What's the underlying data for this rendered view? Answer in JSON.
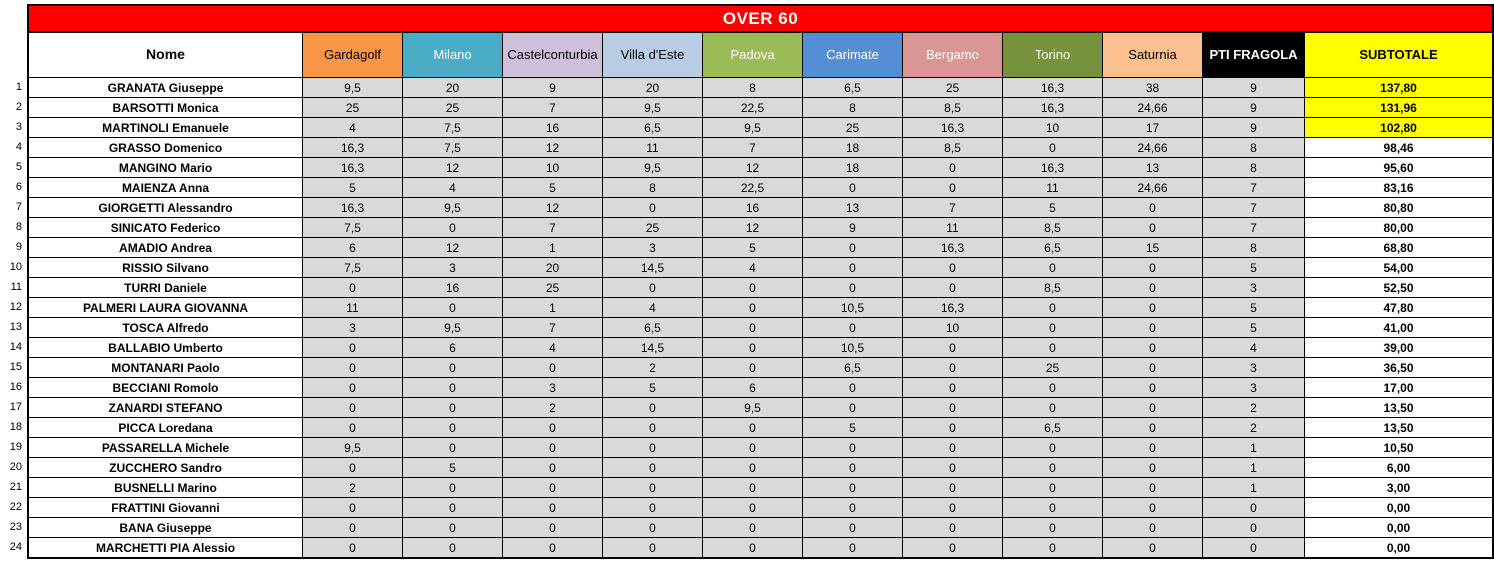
{
  "title": "OVER 60",
  "colors": {
    "title_bg": "#FF0000",
    "title_fg": "#FFFFFF",
    "cell_bg": "#D9D9D9",
    "highlight_bg": "#FFFF00",
    "border": "#000000"
  },
  "name_column": {
    "label": "Nome",
    "bg": "#FFFFFF",
    "fg": "#000000"
  },
  "columns": [
    {
      "label": "Gardagolf",
      "bg": "#F79646",
      "fg": "#000000",
      "bold": false
    },
    {
      "label": "Milano",
      "bg": "#4BACC6",
      "fg": "#FFFFFF",
      "bold": false
    },
    {
      "label": "Castelconturbia",
      "bg": "#CCC0DA",
      "fg": "#000000",
      "bold": false
    },
    {
      "label": "Villa d'Este",
      "bg": "#B8CCE4",
      "fg": "#000000",
      "bold": false
    },
    {
      "label": "Padova",
      "bg": "#9BBB59",
      "fg": "#FFFFFF",
      "bold": false
    },
    {
      "label": "Carimate",
      "bg": "#558ED5",
      "fg": "#FFFFFF",
      "bold": false
    },
    {
      "label": "Bergamo",
      "bg": "#D99694",
      "fg": "#FFFFFF",
      "bold": false
    },
    {
      "label": "Torino",
      "bg": "#76923C",
      "fg": "#FFFFFF",
      "bold": false
    },
    {
      "label": "Saturnia",
      "bg": "#FAC08F",
      "fg": "#000000",
      "bold": false
    },
    {
      "label": "PTI FRAGOLA",
      "bg": "#000000",
      "fg": "#FFFFFF",
      "bold": true
    },
    {
      "label": "SUBTOTALE",
      "bg": "#FFFF00",
      "fg": "#000000",
      "bold": true
    }
  ],
  "rows": [
    {
      "num": "1",
      "name": "GRANATA Giuseppe",
      "scores": [
        "9,5",
        "20",
        "9",
        "20",
        "8",
        "6,5",
        "25",
        "16,3",
        "38"
      ],
      "pti": "9",
      "subtotal": "137,80",
      "highlight": true
    },
    {
      "num": "2",
      "name": "BARSOTTI Monica",
      "scores": [
        "25",
        "25",
        "7",
        "9,5",
        "22,5",
        "8",
        "8,5",
        "16,3",
        "24,66"
      ],
      "pti": "9",
      "subtotal": "131,96",
      "highlight": true
    },
    {
      "num": "3",
      "name": "MARTINOLI Emanuele",
      "scores": [
        "4",
        "7,5",
        "16",
        "6,5",
        "9,5",
        "25",
        "16,3",
        "10",
        "17"
      ],
      "pti": "9",
      "subtotal": "102,80",
      "highlight": true
    },
    {
      "num": "4",
      "name": "GRASSO Domenico",
      "scores": [
        "16,3",
        "7,5",
        "12",
        "11",
        "7",
        "18",
        "8,5",
        "0",
        "24,66"
      ],
      "pti": "8",
      "subtotal": "98,46",
      "highlight": false
    },
    {
      "num": "5",
      "name": "MANGINO Mario",
      "scores": [
        "16,3",
        "12",
        "10",
        "9,5",
        "12",
        "18",
        "0",
        "16,3",
        "13"
      ],
      "pti": "8",
      "subtotal": "95,60",
      "highlight": false
    },
    {
      "num": "6",
      "name": "MAIENZA Anna",
      "scores": [
        "5",
        "4",
        "5",
        "8",
        "22,5",
        "0",
        "0",
        "11",
        "24,66"
      ],
      "pti": "7",
      "subtotal": "83,16",
      "highlight": false
    },
    {
      "num": "7",
      "name": "GIORGETTI Alessandro",
      "scores": [
        "16,3",
        "9,5",
        "12",
        "0",
        "16",
        "13",
        "7",
        "5",
        "0"
      ],
      "pti": "7",
      "subtotal": "80,80",
      "highlight": false
    },
    {
      "num": "8",
      "name": "SINICATO Federico",
      "scores": [
        "7,5",
        "0",
        "7",
        "25",
        "12",
        "9",
        "11",
        "8,5",
        "0"
      ],
      "pti": "7",
      "subtotal": "80,00",
      "highlight": false
    },
    {
      "num": "9",
      "name": "AMADIO Andrea",
      "scores": [
        "6",
        "12",
        "1",
        "3",
        "5",
        "0",
        "16,3",
        "6,5",
        "15"
      ],
      "pti": "8",
      "subtotal": "68,80",
      "highlight": false
    },
    {
      "num": "10",
      "name": "RISSIO Silvano",
      "scores": [
        "7,5",
        "3",
        "20",
        "14,5",
        "4",
        "0",
        "0",
        "0",
        "0"
      ],
      "pti": "5",
      "subtotal": "54,00",
      "highlight": false
    },
    {
      "num": "11",
      "name": "TURRI Daniele",
      "scores": [
        "0",
        "16",
        "25",
        "0",
        "0",
        "0",
        "0",
        "8,5",
        "0"
      ],
      "pti": "3",
      "subtotal": "52,50",
      "highlight": false
    },
    {
      "num": "12",
      "name": "PALMERI LAURA GIOVANNA",
      "scores": [
        "11",
        "0",
        "1",
        "4",
        "0",
        "10,5",
        "16,3",
        "0",
        "0"
      ],
      "pti": "5",
      "subtotal": "47,80",
      "highlight": false
    },
    {
      "num": "13",
      "name": "TOSCA Alfredo",
      "scores": [
        "3",
        "9,5",
        "7",
        "6,5",
        "0",
        "0",
        "10",
        "0",
        "0"
      ],
      "pti": "5",
      "subtotal": "41,00",
      "highlight": false
    },
    {
      "num": "14",
      "name": "BALLABIO Umberto",
      "scores": [
        "0",
        "6",
        "4",
        "14,5",
        "0",
        "10,5",
        "0",
        "0",
        "0"
      ],
      "pti": "4",
      "subtotal": "39,00",
      "highlight": false
    },
    {
      "num": "15",
      "name": "MONTANARI Paolo",
      "scores": [
        "0",
        "0",
        "0",
        "2",
        "0",
        "6,5",
        "0",
        "25",
        "0"
      ],
      "pti": "3",
      "subtotal": "36,50",
      "highlight": false
    },
    {
      "num": "16",
      "name": "BECCIANI Romolo",
      "scores": [
        "0",
        "0",
        "3",
        "5",
        "6",
        "0",
        "0",
        "0",
        "0"
      ],
      "pti": "3",
      "subtotal": "17,00",
      "highlight": false
    },
    {
      "num": "17",
      "name": "ZANARDI STEFANO",
      "scores": [
        "0",
        "0",
        "2",
        "0",
        "9,5",
        "0",
        "0",
        "0",
        "0"
      ],
      "pti": "2",
      "subtotal": "13,50",
      "highlight": false
    },
    {
      "num": "18",
      "name": "PICCA Loredana",
      "scores": [
        "0",
        "0",
        "0",
        "0",
        "0",
        "5",
        "0",
        "6,5",
        "0"
      ],
      "pti": "2",
      "subtotal": "13,50",
      "highlight": false
    },
    {
      "num": "19",
      "name": "PASSARELLA Michele",
      "scores": [
        "9,5",
        "0",
        "0",
        "0",
        "0",
        "0",
        "0",
        "0",
        "0"
      ],
      "pti": "1",
      "subtotal": "10,50",
      "highlight": false
    },
    {
      "num": "20",
      "name": "ZUCCHERO Sandro",
      "scores": [
        "0",
        "5",
        "0",
        "0",
        "0",
        "0",
        "0",
        "0",
        "0"
      ],
      "pti": "1",
      "subtotal": "6,00",
      "highlight": false
    },
    {
      "num": "21",
      "name": "BUSNELLI Marino",
      "scores": [
        "2",
        "0",
        "0",
        "0",
        "0",
        "0",
        "0",
        "0",
        "0"
      ],
      "pti": "1",
      "subtotal": "3,00",
      "highlight": false
    },
    {
      "num": "22",
      "name": "FRATTINI Giovanni",
      "scores": [
        "0",
        "0",
        "0",
        "0",
        "0",
        "0",
        "0",
        "0",
        "0"
      ],
      "pti": "0",
      "subtotal": "0,00",
      "highlight": false
    },
    {
      "num": "23",
      "name": "BANA Giuseppe",
      "scores": [
        "0",
        "0",
        "0",
        "0",
        "0",
        "0",
        "0",
        "0",
        "0"
      ],
      "pti": "0",
      "subtotal": "0,00",
      "highlight": false
    },
    {
      "num": "24",
      "name": "MARCHETTI PIA Alessio",
      "scores": [
        "0",
        "0",
        "0",
        "0",
        "0",
        "0",
        "0",
        "0",
        "0"
      ],
      "pti": "0",
      "subtotal": "0,00",
      "highlight": false
    }
  ]
}
